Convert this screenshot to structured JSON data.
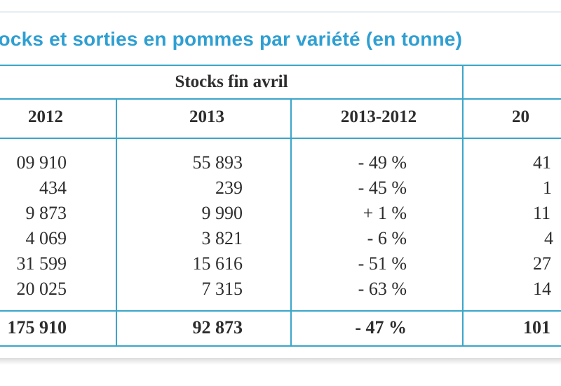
{
  "title": "tocks et sorties en pommes par variété (en tonne)",
  "group_header": "Stocks fin avril",
  "columns": [
    "2012",
    "2013",
    "2013-2012",
    "20"
  ],
  "rows": [
    [
      "09 910",
      "55 893",
      "- 49 %",
      "41"
    ],
    [
      "434",
      "239",
      "- 45 %",
      "1"
    ],
    [
      "9 873",
      "9 990",
      "+ 1 %",
      "11"
    ],
    [
      "4 069",
      "3 821",
      "- 6 %",
      "4"
    ],
    [
      "31 599",
      "15 616",
      "- 51 %",
      "27"
    ],
    [
      "20 025",
      "7 315",
      "- 63 %",
      "14"
    ]
  ],
  "total": [
    "175 910",
    "92 873",
    "- 47 %",
    "101"
  ],
  "colors": {
    "title": "#2f9fd2",
    "rule": "#3aa6c9"
  }
}
